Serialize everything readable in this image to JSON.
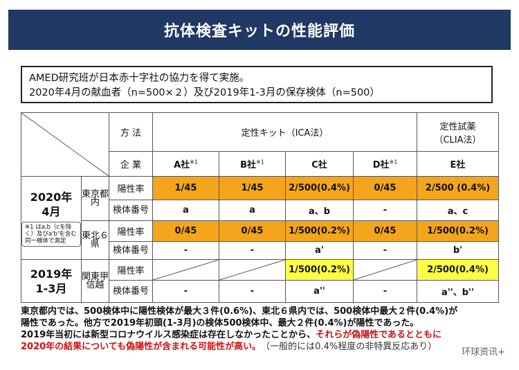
{
  "title": "抗体検査キットの性能評価",
  "info": {
    "line1": "AMED研究班が日本赤十字社の協力を得て実施。",
    "line2": "2020年4月の献血者（n=500×２）及び2019年1-3月の保存検体（n=500）"
  },
  "table": {
    "method_label": "方 法",
    "qual_kit_label": "定性キット（ICA法）",
    "qual_reagent_label": "定性試薬",
    "qual_reagent_sub": "（CLIA法）",
    "company_label": "企 業",
    "companies": [
      {
        "name": "A社",
        "mark": "※1"
      },
      {
        "name": "B社",
        "mark": "※1"
      },
      {
        "name": "C社",
        "mark": ""
      },
      {
        "name": "D社",
        "mark": "※1"
      },
      {
        "name": "E社",
        "mark": ""
      }
    ],
    "period_2020": "2020年",
    "period_2020_month": "4月",
    "note_2020": "※1 はa,b（cを除く）及びa'b'を含む同一検体で測定",
    "period_2019": "2019年",
    "period_2019_month": "1-3月",
    "region_tokyo": "東京都内",
    "region_tohoku": "東北６県",
    "region_kanto": "関東甲信越",
    "positive_rate_label": "陽性率",
    "specimen_label": "検体番号",
    "tokyo_rates": [
      "1/45",
      "1/45",
      "2/500(0.4%)",
      "0/45",
      "2/500 (0.4%)"
    ],
    "tokyo_ids": [
      "a",
      "a",
      "a、b",
      "-",
      "a、c"
    ],
    "tohoku_rates": [
      "0/45",
      "0/45",
      "1/500(0.2%)",
      "0/45",
      "1/500(0.2%)"
    ],
    "tohoku_ids": [
      "-",
      "-",
      "a'",
      "-",
      "b'"
    ],
    "kanto_rates": [
      "",
      "",
      "1/500(0.2%)",
      "",
      "2/500(0.4%)"
    ],
    "kanto_ids": [
      "-",
      "-",
      "a''",
      "-",
      "a''、b''"
    ]
  },
  "footer": {
    "line1": "東京都内では、500検体中に陽性検体が最大３件(0.6%)、東北６県内では、500検体中最大２件(0.4%)が",
    "line2": "陽性であった。他方で2019年初頭(1-3月)の検体500検体中、最大２件(0.4%)が陽性であった。",
    "line3a": "2019年当初には新型コロナウイルス感染症は存在しなかったことから、",
    "line3b": "それらが偽陽性であるとともに",
    "line4a": "2020年の結果についても偽陽性が含まれる可能性が高い。",
    "line4b": "（一般的には0.4%程度の非特異反応あり）"
  },
  "watermark": "环球资讯+"
}
